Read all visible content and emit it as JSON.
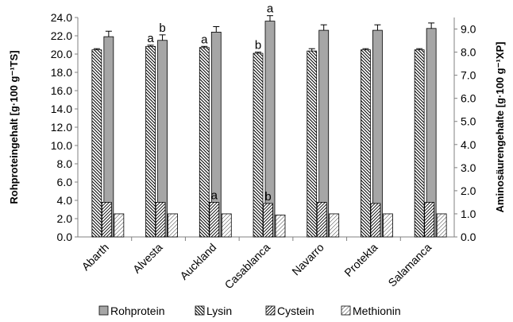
{
  "chart_data": {
    "type": "bar",
    "categories": [
      "Abarth",
      "Alvesta",
      "Auckland",
      "Casablanca",
      "Navarro",
      "Protekta",
      "Salamanca"
    ],
    "y_left": {
      "label": "Rohproteingehalt [g·100 g⁻¹TS]",
      "range": [
        0,
        24
      ],
      "ticks": [
        "0.0",
        "2.0",
        "4.0",
        "6.0",
        "8.0",
        "10.0",
        "12.0",
        "14.0",
        "16.0",
        "18.0",
        "20.0",
        "22.0",
        "24.0"
      ]
    },
    "y_right": {
      "label": "Aminosäurengehalte [g·100 g⁻¹XP]",
      "range": [
        0,
        9.5
      ],
      "ticks": [
        "0.0",
        "1.0",
        "2.0",
        "3.0",
        "4.0",
        "5.0",
        "6.0",
        "7.0",
        "8.0",
        "9.0"
      ]
    },
    "series": [
      {
        "name": "Rohprotein",
        "axis": "left",
        "pattern": "solid-gray",
        "values": [
          21.9,
          21.5,
          22.4,
          23.6,
          22.6,
          22.6,
          22.8
        ],
        "errors": [
          0.6,
          0.6,
          0.6,
          0.6,
          0.6,
          0.6,
          0.6
        ],
        "letters": [
          "",
          "b",
          "",
          "a",
          "",
          "",
          ""
        ]
      },
      {
        "name": "Lysin",
        "axis": "right",
        "pattern": "back-diagonal",
        "values": [
          8.1,
          8.25,
          8.2,
          7.95,
          8.05,
          8.1,
          8.1
        ],
        "errors": [
          0.05,
          0.05,
          0.05,
          0.05,
          0.1,
          0.05,
          0.05
        ],
        "letters": [
          "",
          "a",
          "a",
          "b",
          "",
          "",
          ""
        ]
      },
      {
        "name": "Cystein",
        "axis": "right",
        "pattern": "forward-diagonal",
        "values": [
          1.5,
          1.5,
          1.5,
          1.45,
          1.5,
          1.45,
          1.5
        ],
        "errors": [
          0,
          0,
          0,
          0,
          0,
          0,
          0
        ],
        "letters": [
          "",
          "",
          "a",
          "b",
          "",
          "",
          ""
        ]
      },
      {
        "name": "Methionin",
        "axis": "right",
        "pattern": "light-diagonal",
        "values": [
          1.0,
          1.0,
          1.0,
          0.95,
          1.0,
          1.0,
          1.0
        ],
        "errors": [
          0,
          0,
          0,
          0,
          0,
          0,
          0
        ],
        "letters": [
          "",
          "",
          "",
          "",
          "",
          "",
          ""
        ]
      }
    ],
    "legend": [
      "Rohprotein",
      "Lysin",
      "Cystein",
      "Methionin"
    ],
    "legend_position": "bottom",
    "grid": false
  }
}
